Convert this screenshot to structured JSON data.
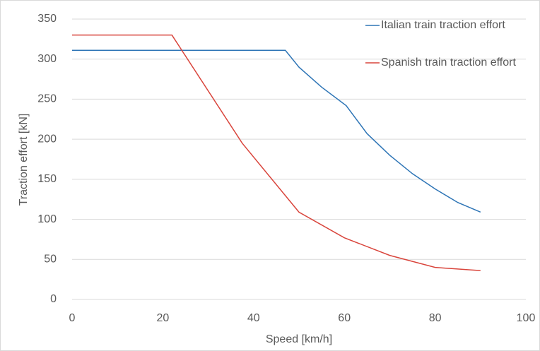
{
  "chart_data": {
    "type": "line",
    "xlabel": "Speed [km/h]",
    "ylabel": "Traction effort [kN]",
    "xlim": [
      0,
      100
    ],
    "xticks": [
      0,
      20,
      40,
      60,
      80,
      100
    ],
    "ylim": [
      0,
      350
    ],
    "yticks": [
      0,
      50,
      100,
      150,
      200,
      250,
      300,
      350
    ],
    "grid": true,
    "legend": "right",
    "series": [
      {
        "name": "Italian train traction effort",
        "color": "#2e75b6",
        "x": [
          0,
          47,
          50,
          55,
          60.4,
          65,
          70,
          75,
          80,
          85,
          90
        ],
        "values": [
          311,
          311,
          290,
          265,
          242,
          207,
          180,
          157,
          138,
          121,
          109
        ]
      },
      {
        "name": "Spanish train traction effort",
        "color": "#d9453c",
        "x": [
          0,
          22,
          37.5,
          50,
          60,
          70,
          80,
          90
        ],
        "values": [
          330,
          330,
          195,
          109,
          77,
          55,
          40,
          36
        ]
      }
    ]
  }
}
